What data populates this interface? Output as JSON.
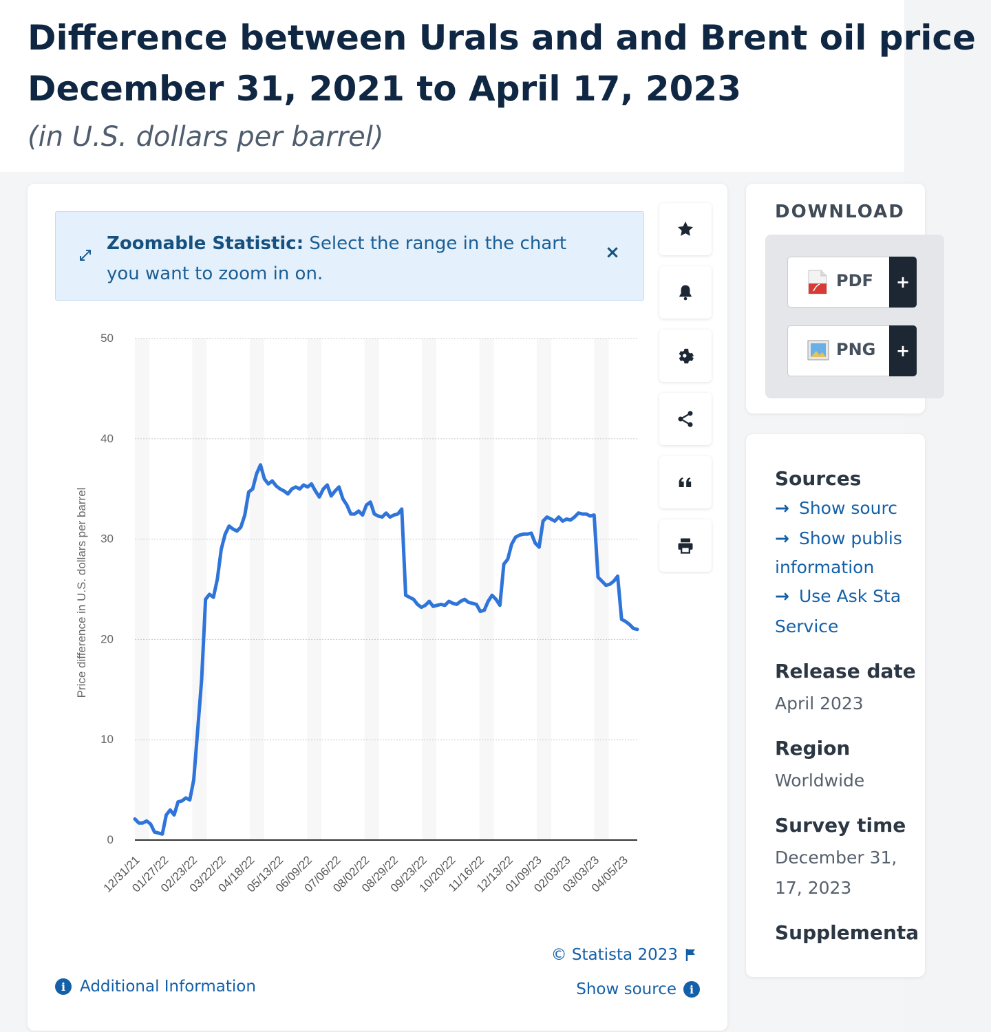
{
  "header": {
    "title_line1": "Difference between Urals and and Brent oil price",
    "title_line2": "December 31, 2021 to April 17, 2023",
    "subtitle": "(in U.S. dollars per barrel)"
  },
  "zoom_notice": {
    "bold": "Zoomable Statistic:",
    "text": " Select the range in the chart you want to zoom in on.",
    "close": "×"
  },
  "toolbar": {
    "icons": [
      "star-icon",
      "bell-icon",
      "gear-icon",
      "share-icon",
      "quote-icon",
      "print-icon"
    ]
  },
  "footer": {
    "copyright": "© Statista 2023",
    "show_source": "Show source",
    "additional_info": "Additional Information"
  },
  "download": {
    "title": "DOWNLOAD",
    "pdf_label": "PDF",
    "png_label": "PNG",
    "plus": "+"
  },
  "info": {
    "sources_heading": "Sources",
    "link1": "Show sourc",
    "link2": "Show publis",
    "link2b": "information",
    "link3": "Use Ask Sta",
    "link3b": "Service",
    "release_heading": "Release date",
    "release_value": "April 2023",
    "region_heading": "Region",
    "region_value": "Worldwide",
    "survey_heading": "Survey time",
    "survey_value1": "December 31,",
    "survey_value2": "17, 2023",
    "supplementary_heading": "Supplementa"
  },
  "colors": {
    "line": "#2f74d9",
    "brand_blue": "#1460a8",
    "title": "#0f2742"
  },
  "chart_data": {
    "type": "line",
    "title": "Difference between Urals and and Brent oil price December 31, 2021 to April 17, 2023",
    "ylabel": "Price difference in U.S. dollars per barrel",
    "xlabel": "",
    "ylim": [
      0,
      50
    ],
    "yticks": [
      0,
      10,
      20,
      30,
      40,
      50
    ],
    "xtick_labels": [
      "12/31/21",
      "01/27/22",
      "02/23/22",
      "03/22/22",
      "04/18/22",
      "05/13/22",
      "06/09/22",
      "07/06/22",
      "08/02/22",
      "08/29/22",
      "09/23/22",
      "10/20/22",
      "11/16/22",
      "12/13/22",
      "01/09/23",
      "02/03/23",
      "03/03/23",
      "04/05/23"
    ],
    "grid": true,
    "series": [
      {
        "values": [
          2.1,
          1.7,
          1.7,
          1.9,
          1.6,
          0.8,
          0.7,
          0.6,
          2.5,
          3.0,
          2.5,
          3.8,
          3.9,
          4.2,
          4.0,
          6.0,
          11.0,
          16.0,
          24.0,
          24.5,
          24.2,
          26.0,
          29.0,
          30.5,
          31.3,
          31.0,
          30.8,
          31.2,
          32.4,
          34.7,
          35.0,
          36.5,
          37.4,
          36.0,
          35.5,
          35.8,
          35.3,
          35.0,
          34.8,
          34.5,
          35.0,
          35.2,
          35.0,
          35.4,
          35.2,
          35.5,
          34.8,
          34.2,
          35.0,
          35.4,
          34.3,
          34.8,
          35.2,
          34.0,
          33.4,
          32.5,
          32.5,
          32.8,
          32.4,
          33.4,
          33.7,
          32.5,
          32.3,
          32.2,
          32.6,
          32.2,
          32.4,
          32.5,
          33.0,
          24.4,
          24.2,
          24.0,
          23.5,
          23.2,
          23.4,
          23.8,
          23.3,
          23.4,
          23.5,
          23.4,
          23.8,
          23.6,
          23.5,
          23.8,
          24.0,
          23.7,
          23.6,
          23.5,
          22.8,
          22.9,
          23.8,
          24.4,
          24.0,
          23.4,
          27.5,
          28.0,
          29.5,
          30.2,
          30.4,
          30.5,
          30.5,
          30.6,
          29.6,
          29.2,
          31.8,
          32.2,
          32.0,
          31.8,
          32.2,
          31.8,
          32.0,
          31.9,
          32.2,
          32.6,
          32.5,
          32.5,
          32.3,
          32.4,
          26.2,
          25.8,
          25.4,
          25.5,
          25.8,
          26.3,
          22.0,
          21.8,
          21.5,
          21.1,
          21.0
        ]
      }
    ]
  }
}
